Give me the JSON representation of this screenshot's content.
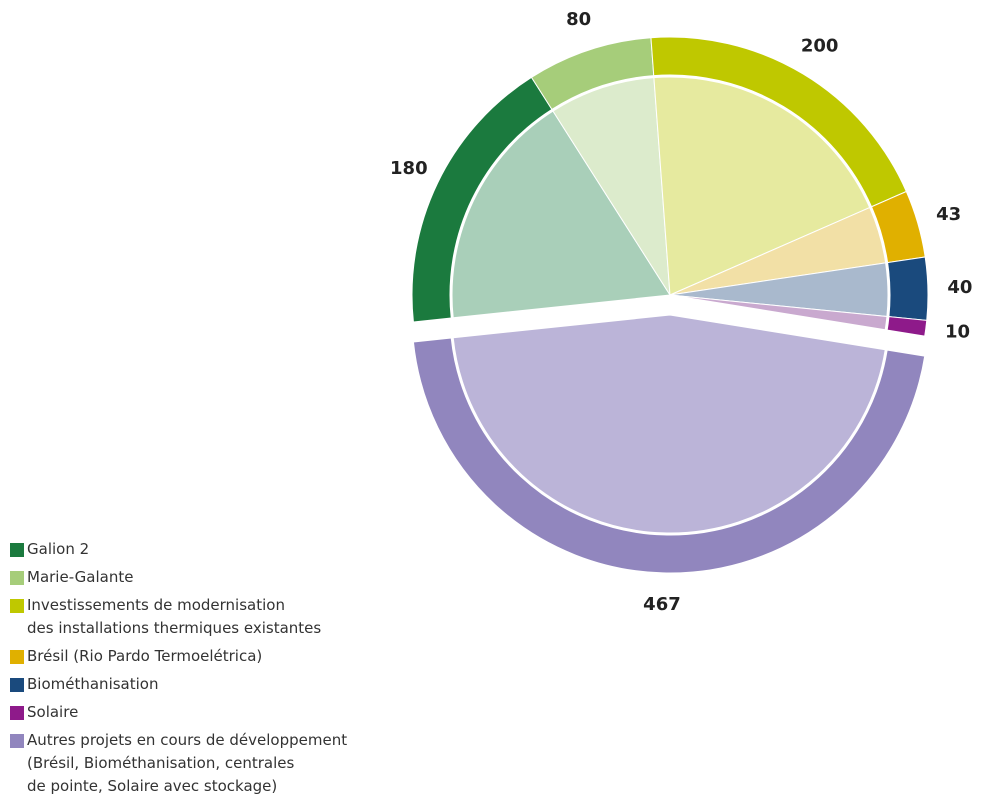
{
  "chart_data": {
    "type": "pie",
    "categories": [
      "Galion 2",
      "Marie-Galante",
      "Investissements de modernisation\ndes installations thermiques existantes",
      "Brésil (Rio Pardo Termoelétrica)",
      "Biométhanisation",
      "Solaire",
      "Autres projets en cours de développement\n(Brésil, Biométhanisation, centrales\nde pointe, Solaire avec stockage)"
    ],
    "values": [
      180,
      80,
      200,
      43,
      40,
      10,
      467
    ],
    "colors": [
      "#1b7a3e",
      "#a6cd7a",
      "#bfc800",
      "#e0b000",
      "#1a4a7d",
      "#8e1a8a",
      "#9186be"
    ],
    "inner_colors": [
      "#a9cfb9",
      "#dcebcc",
      "#e6ea9f",
      "#f2e0a6",
      "#a9b9cd",
      "#c9a9cf",
      "#bbb4d8"
    ]
  }
}
